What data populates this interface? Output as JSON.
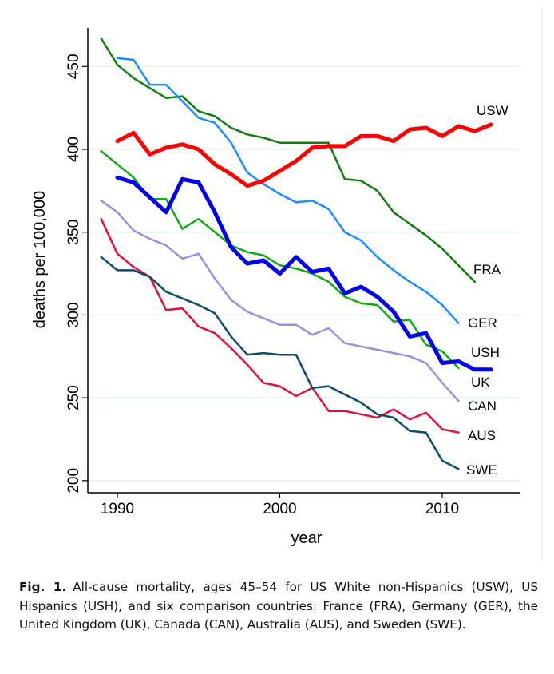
{
  "chart_data": {
    "type": "line",
    "title": "",
    "xlabel": "year",
    "ylabel": "deaths per 100,000",
    "xlim": [
      1988.2,
      2013.7
    ],
    "ylim": [
      190,
      470
    ],
    "xticks": [
      1990,
      2000,
      2010
    ],
    "yticks": [
      200,
      250,
      300,
      350,
      400,
      450
    ],
    "grid": true,
    "legend": "direct labels at line ends",
    "series": [
      {
        "name": "USW",
        "color": "#ff0000",
        "width": 5,
        "start": 1990,
        "values": [
          405,
          410,
          397,
          401,
          403,
          400,
          391,
          385,
          378,
          381,
          387,
          393,
          401,
          402,
          402,
          408,
          408,
          405,
          412,
          413,
          408,
          414,
          411,
          415
        ]
      },
      {
        "name": "FRA",
        "color": "#137c13",
        "width": 2.5,
        "start": 1989,
        "values": [
          467,
          451,
          443,
          437,
          431,
          432,
          423,
          420,
          413,
          409,
          407,
          404,
          404,
          404,
          404,
          382,
          381,
          375,
          362,
          355,
          348,
          340,
          330,
          320
        ]
      },
      {
        "name": "GER",
        "color": "#1c8cff",
        "width": 2.5,
        "start": 1990,
        "values": [
          455,
          454,
          439,
          439,
          429,
          419,
          416,
          404,
          386,
          379,
          373,
          368,
          369,
          364,
          350,
          345,
          335,
          327,
          320,
          314,
          306,
          295
        ]
      },
      {
        "name": "USH",
        "color": "#0000f0",
        "width": 5,
        "start": 1990,
        "values": [
          383,
          380,
          371,
          362,
          382,
          380,
          362,
          341,
          331,
          333,
          325,
          335,
          326,
          328,
          313,
          317,
          311,
          302,
          287,
          289,
          271,
          272,
          267,
          267
        ]
      },
      {
        "name": "UK",
        "color": "#12aa12",
        "width": 2.5,
        "start": 1989,
        "values": [
          399,
          391,
          383,
          370,
          370,
          352,
          358,
          350,
          342,
          338,
          336,
          330,
          328,
          325,
          320,
          311,
          307,
          306,
          296,
          297,
          282,
          278,
          268
        ]
      },
      {
        "name": "CAN",
        "color": "#9d90d8",
        "width": 2.5,
        "start": 1989,
        "values": [
          369,
          362,
          351,
          346,
          342,
          334,
          337,
          322,
          309,
          302,
          298,
          294,
          294,
          288,
          292,
          283,
          281,
          279,
          277,
          275,
          271,
          259,
          248
        ]
      },
      {
        "name": "AUS",
        "color": "#e0103c",
        "width": 2.5,
        "start": 1989,
        "values": [
          358,
          337,
          329,
          323,
          303,
          304,
          293,
          289,
          280,
          270,
          259,
          257,
          251,
          256,
          242,
          242,
          240,
          238,
          243,
          237,
          241,
          231,
          229
        ]
      },
      {
        "name": "SWE",
        "color": "#0f4a66",
        "width": 2.5,
        "start": 1989,
        "values": [
          335,
          327,
          327,
          323,
          314,
          310,
          306,
          301,
          287,
          276,
          277,
          276,
          276,
          256,
          257,
          252,
          247,
          240,
          238,
          230,
          229,
          212,
          207
        ]
      }
    ]
  },
  "caption": {
    "label": "Fig. 1.",
    "text": "All-cause mortality, ages 45–54 for US White non-Hispanics (USW), US Hispanics (USH), and six comparison countries: France (FRA), Germany (GER), the United Kingdom (UK), Canada (CAN), Australia (AUS), and Sweden (SWE)."
  }
}
